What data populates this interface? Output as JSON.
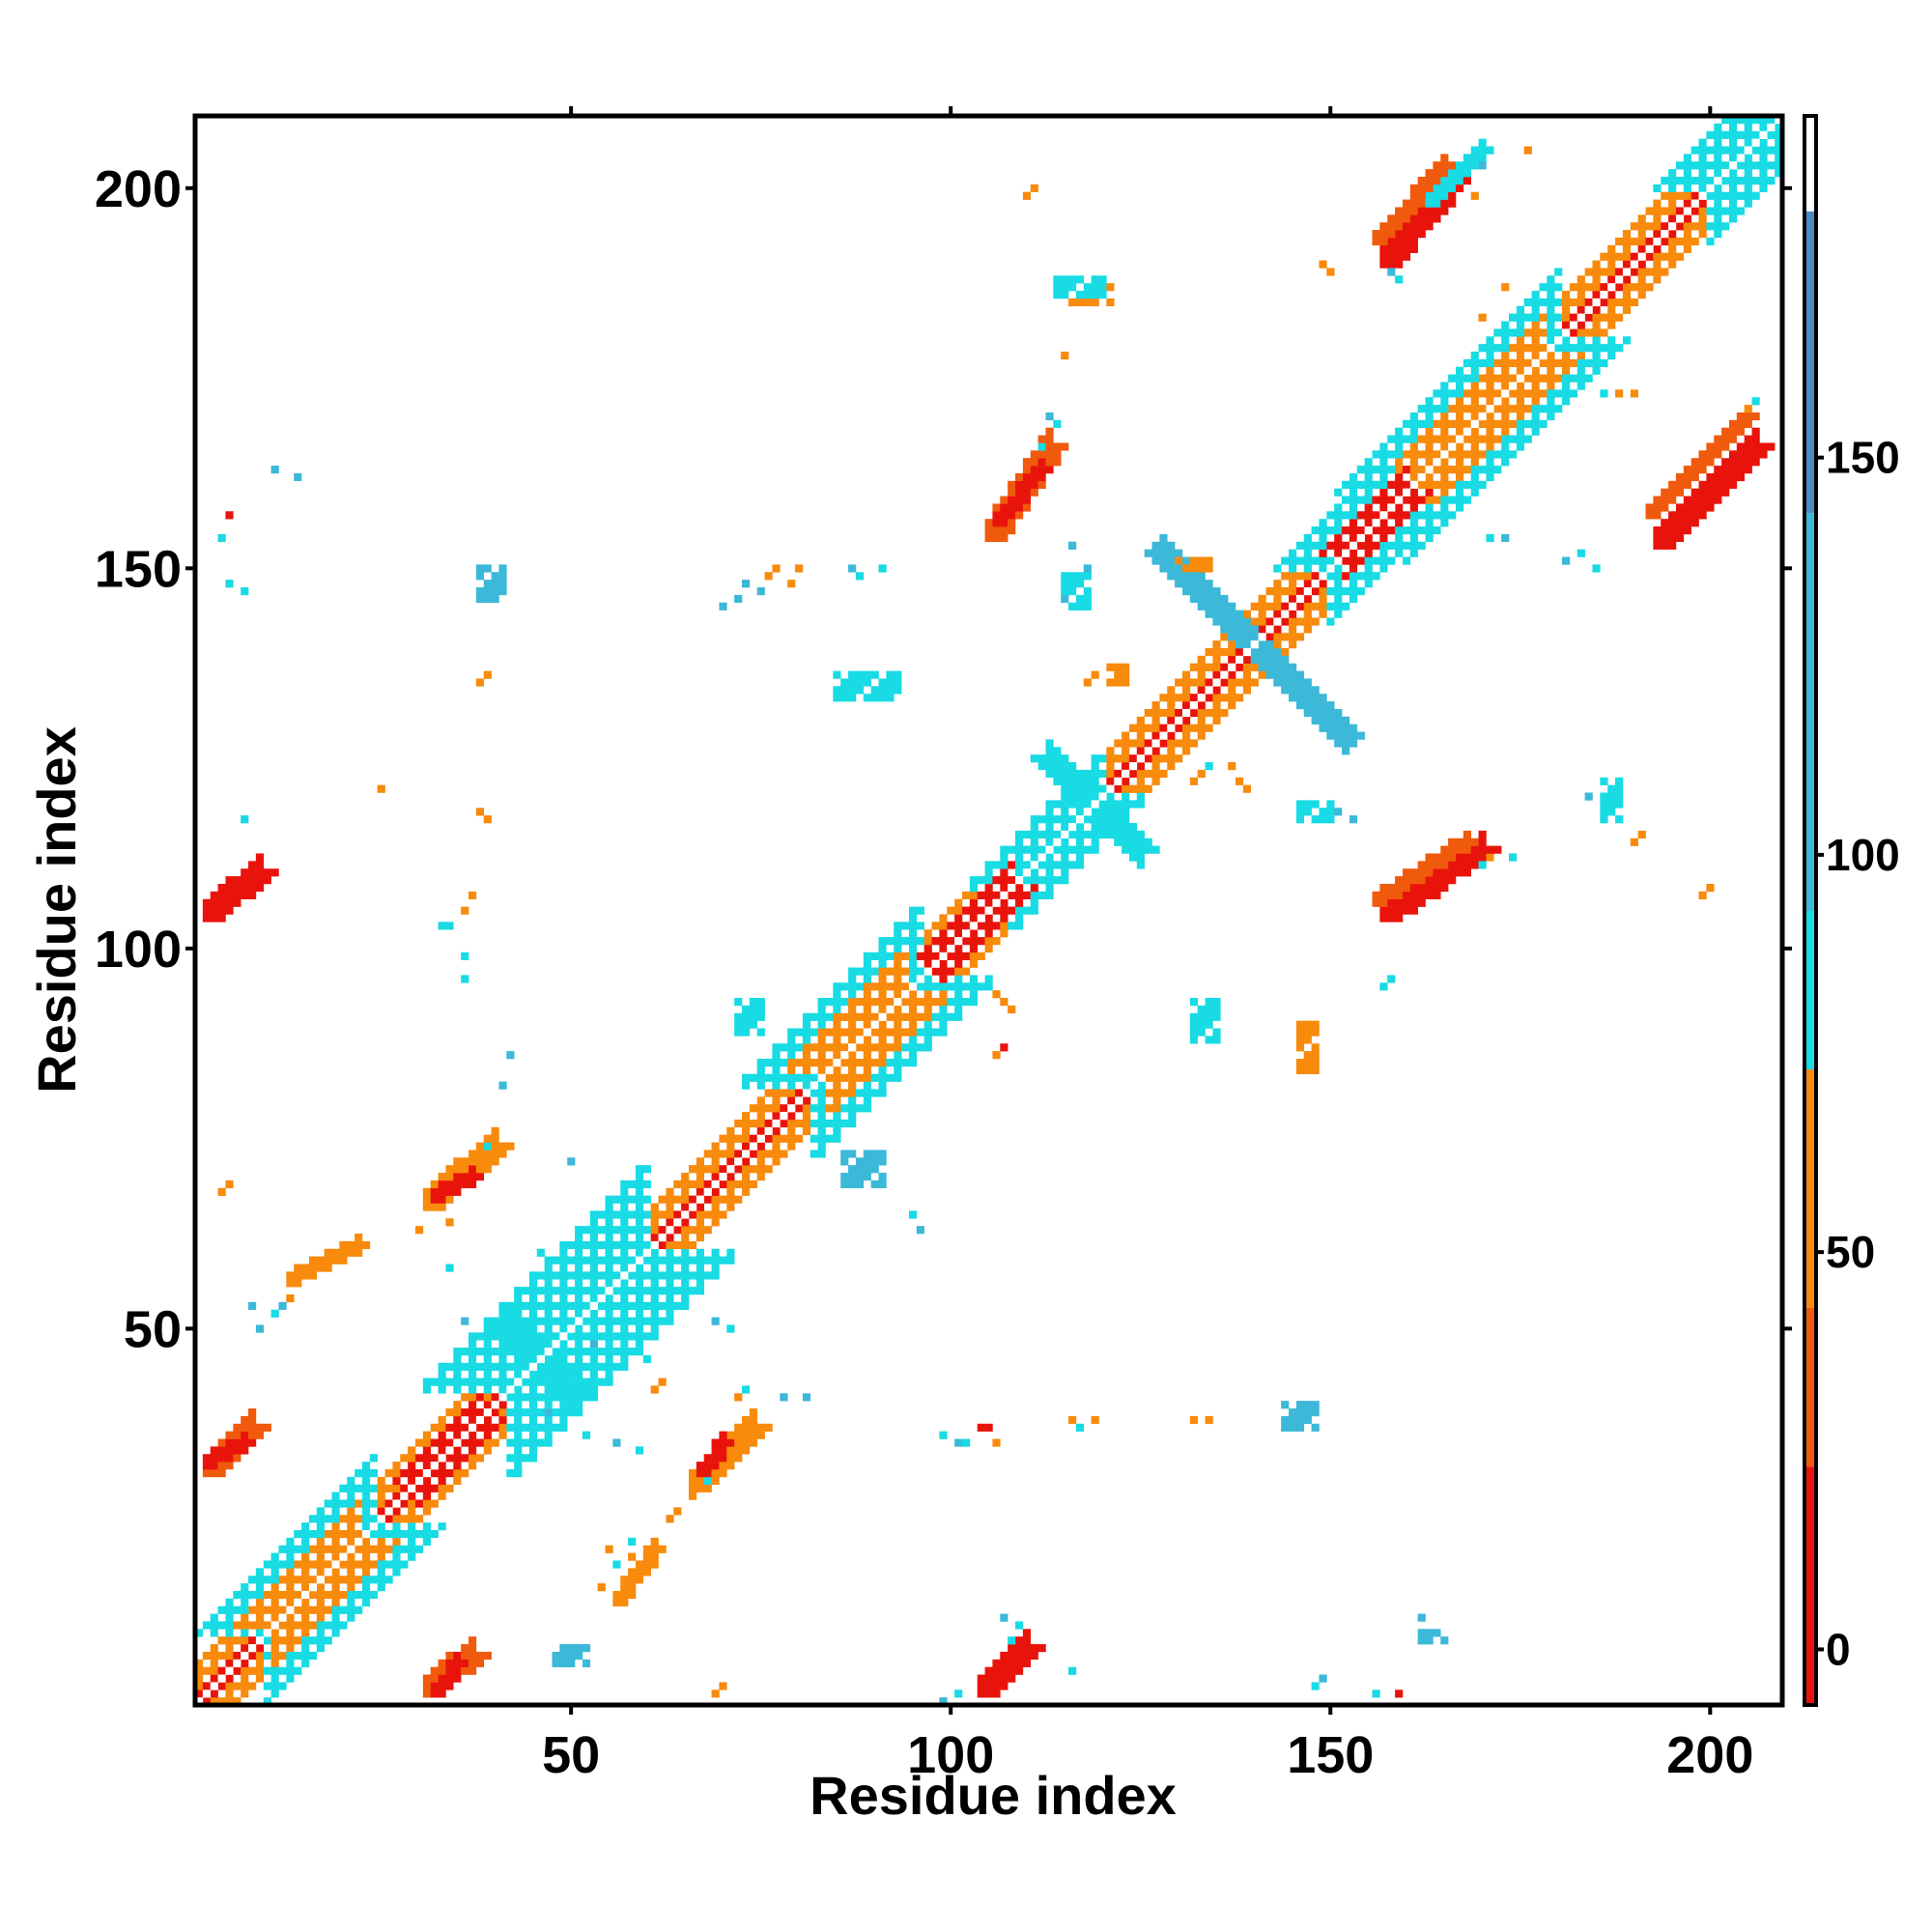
{
  "chart_data": {
    "type": "heatmap",
    "title": "",
    "xlabel": "Residue index",
    "ylabel": "Residue index",
    "xlim": [
      1,
      209
    ],
    "ylim": [
      1,
      209
    ],
    "x_ticks": [
      "50",
      "100",
      "150",
      "200"
    ],
    "y_ticks": [
      "50",
      "100",
      "150",
      "200"
    ],
    "colorbar": {
      "ticks": [
        "0",
        "50",
        "100",
        "150"
      ],
      "tick_values": [
        0,
        50,
        100,
        150
      ],
      "range": [
        -7,
        193
      ],
      "bands": [
        {
          "from": -7,
          "to": 23,
          "color": "#e8140c"
        },
        {
          "from": 23,
          "to": 43,
          "color": "#f05a0c"
        },
        {
          "from": 43,
          "to": 73,
          "color": "#f88a0c"
        },
        {
          "from": 73,
          "to": 93,
          "color": "#18dbe4"
        },
        {
          "from": 93,
          "to": 143,
          "color": "#3cb8d8"
        },
        {
          "from": 143,
          "to": 181,
          "color": "#4a8cc4"
        },
        {
          "from": 181,
          "to": 193,
          "color": "#ffffff"
        }
      ]
    },
    "palette": {
      "red": "#e8140c",
      "orange_red": "#f05a0c",
      "orange": "#f88a0c",
      "cyan": "#18dbe4",
      "light_blue": "#3cb8d8",
      "steel_blue": "#4a8cc4"
    },
    "regions": [
      {
        "kind": "diag",
        "from": 1,
        "to": 209,
        "width": 5,
        "color": "orange"
      },
      {
        "kind": "diag",
        "from": 1,
        "to": 209,
        "width": 1,
        "color": "red"
      },
      {
        "kind": "diag",
        "from": 42,
        "to": 60,
        "width": 12,
        "color": "cyan"
      },
      {
        "kind": "diag",
        "from": 82,
        "to": 96,
        "width": 10,
        "color": "cyan"
      },
      {
        "kind": "diag",
        "from": 84,
        "to": 94,
        "width": 6,
        "color": "orange"
      },
      {
        "kind": "diag",
        "from": 160,
        "to": 180,
        "width": 9,
        "color": "cyan"
      },
      {
        "kind": "diag",
        "from": 162,
        "to": 178,
        "width": 5,
        "color": "orange"
      },
      {
        "kind": "diag",
        "from": 10,
        "to": 24,
        "width": 9,
        "color": "cyan"
      },
      {
        "kind": "diag",
        "from": 11,
        "to": 22,
        "width": 5,
        "color": "orange"
      },
      {
        "kind": "diag",
        "from": 200,
        "to": 209,
        "width": 7,
        "color": "cyan"
      },
      {
        "kind": "diag",
        "from": 150,
        "to": 158,
        "width": 7,
        "color": "cyan"
      },
      {
        "kind": "diag",
        "from": 108,
        "to": 120,
        "width": 6,
        "color": "cyan"
      },
      {
        "kind": "diag",
        "from": 99,
        "to": 108,
        "width": 3,
        "color": "red"
      },
      {
        "kind": "diag",
        "from": 30,
        "to": 38,
        "width": 3,
        "color": "red"
      },
      {
        "kind": "diag",
        "from": 152,
        "to": 160,
        "width": 3,
        "color": "red"
      },
      {
        "kind": "anti",
        "c": 140,
        "r1": -13,
        "r2": 12,
        "width": 3,
        "color": "light_blue"
      },
      {
        "kind": "anti",
        "c": 119,
        "r1": -6,
        "r2": 6,
        "width": 3,
        "color": "cyan"
      },
      {
        "kind": "anti",
        "c": 46,
        "r1": -4,
        "r2": 4,
        "width": 4,
        "color": "cyan"
      },
      {
        "kind": "para",
        "x1": 157,
        "y1": 190,
        "x2": 166,
        "y2": 201,
        "width": 3,
        "color": "red"
      },
      {
        "kind": "para",
        "x1": 156,
        "y1": 193,
        "x2": 165,
        "y2": 203,
        "width": 2,
        "color": "orange_red"
      },
      {
        "kind": "para",
        "x1": 163,
        "y1": 198,
        "x2": 170,
        "y2": 205,
        "width": 2,
        "color": "cyan"
      },
      {
        "kind": "para",
        "x1": 193,
        "y1": 153,
        "x2": 206,
        "y2": 166,
        "width": 3,
        "color": "red"
      },
      {
        "kind": "para",
        "x1": 192,
        "y1": 157,
        "x2": 205,
        "y2": 170,
        "width": 2,
        "color": "orange_red"
      },
      {
        "kind": "para",
        "x1": 105,
        "y1": 154,
        "x2": 113,
        "y2": 166,
        "width": 3,
        "color": "orange_red"
      },
      {
        "kind": "para",
        "x1": 106,
        "y1": 156,
        "x2": 112,
        "y2": 163,
        "width": 2,
        "color": "red"
      },
      {
        "kind": "para",
        "x1": 157,
        "y1": 104,
        "x2": 170,
        "y2": 113,
        "width": 3,
        "color": "red"
      },
      {
        "kind": "para",
        "x1": 156,
        "y1": 106,
        "x2": 168,
        "y2": 114,
        "width": 2,
        "color": "orange_red"
      },
      {
        "kind": "para",
        "x1": 2,
        "y1": 104,
        "x2": 9,
        "y2": 110,
        "width": 3,
        "color": "red"
      },
      {
        "kind": "para",
        "x1": 2,
        "y1": 31,
        "x2": 8,
        "y2": 37,
        "width": 3,
        "color": "orange_red"
      },
      {
        "kind": "para",
        "x1": 2,
        "y1": 32,
        "x2": 7,
        "y2": 35,
        "width": 2,
        "color": "red"
      },
      {
        "kind": "para",
        "x1": 31,
        "y1": 2,
        "x2": 37,
        "y2": 7,
        "width": 3,
        "color": "orange_red"
      },
      {
        "kind": "para",
        "x1": 32,
        "y1": 2,
        "x2": 35,
        "y2": 6,
        "width": 2,
        "color": "red"
      },
      {
        "kind": "para",
        "x1": 104,
        "y1": 2,
        "x2": 110,
        "y2": 8,
        "width": 3,
        "color": "red"
      },
      {
        "kind": "para",
        "x1": 31,
        "y1": 66,
        "x2": 40,
        "y2": 74,
        "width": 3,
        "color": "orange"
      },
      {
        "kind": "para",
        "x1": 32,
        "y1": 67,
        "x2": 37,
        "y2": 70,
        "width": 2,
        "color": "red"
      },
      {
        "kind": "para",
        "x1": 66,
        "y1": 29,
        "x2": 74,
        "y2": 37,
        "width": 3,
        "color": "orange"
      },
      {
        "kind": "para",
        "x1": 67,
        "y1": 31,
        "x2": 70,
        "y2": 35,
        "width": 2,
        "color": "red"
      },
      {
        "kind": "para",
        "x1": 13,
        "y1": 56,
        "x2": 22,
        "y2": 61,
        "width": 2,
        "color": "orange"
      },
      {
        "kind": "para",
        "x1": 56,
        "y1": 14,
        "x2": 61,
        "y2": 21,
        "width": 2,
        "color": "orange"
      },
      {
        "kind": "blob",
        "x1": 38,
        "x2": 41,
        "y1": 146,
        "y2": 150,
        "color": "light_blue"
      },
      {
        "kind": "blob",
        "x1": 115,
        "x2": 118,
        "y1": 145,
        "y2": 149,
        "color": "cyan"
      },
      {
        "kind": "blob",
        "x1": 85,
        "x2": 93,
        "y1": 133,
        "y2": 136,
        "color": "cyan"
      },
      {
        "kind": "blob",
        "x1": 146,
        "x2": 150,
        "y1": 117,
        "y2": 119,
        "color": "cyan"
      },
      {
        "kind": "blob",
        "x1": 144,
        "x2": 148,
        "y1": 37,
        "y2": 40,
        "color": "light_blue"
      },
      {
        "kind": "blob",
        "x1": 132,
        "x2": 135,
        "y1": 88,
        "y2": 93,
        "color": "cyan"
      },
      {
        "kind": "blob",
        "x1": 72,
        "x2": 75,
        "y1": 89,
        "y2": 93,
        "color": "cyan"
      },
      {
        "kind": "blob",
        "x1": 186,
        "x2": 188,
        "y1": 117,
        "y2": 122,
        "color": "cyan"
      },
      {
        "kind": "blob",
        "x1": 115,
        "x2": 121,
        "y1": 185,
        "y2": 187,
        "color": "orange"
      },
      {
        "kind": "blob",
        "x1": 114,
        "x2": 120,
        "y1": 186,
        "y2": 188,
        "color": "cyan"
      },
      {
        "kind": "blob",
        "x1": 146,
        "x2": 148,
        "y1": 84,
        "y2": 90,
        "color": "orange"
      },
      {
        "kind": "blob",
        "x1": 86,
        "x2": 91,
        "y1": 69,
        "y2": 73,
        "color": "light_blue"
      },
      {
        "kind": "blob",
        "x1": 121,
        "x2": 123,
        "y1": 135,
        "y2": 137,
        "color": "orange"
      },
      {
        "kind": "blob",
        "x1": 130,
        "x2": 134,
        "y1": 150,
        "y2": 151,
        "color": "orange"
      },
      {
        "kind": "blob",
        "x1": 162,
        "x2": 165,
        "y1": 9,
        "y2": 10,
        "color": "light_blue"
      },
      {
        "kind": "blob",
        "x1": 48,
        "x2": 52,
        "y1": 6,
        "y2": 8,
        "color": "light_blue"
      }
    ],
    "speckles": [
      [
        110,
        199,
        "orange"
      ],
      [
        111,
        200,
        "orange"
      ],
      [
        112,
        166,
        "cyan"
      ],
      [
        114,
        169,
        "cyan"
      ],
      [
        113,
        170,
        "light_blue"
      ],
      [
        115,
        178,
        "orange"
      ],
      [
        5,
        157,
        "red"
      ],
      [
        4,
        154,
        "cyan"
      ],
      [
        11,
        163,
        "light_blue"
      ],
      [
        14,
        162,
        "light_blue"
      ],
      [
        5,
        148,
        "cyan"
      ],
      [
        7,
        147,
        "cyan"
      ],
      [
        39,
        136,
        "orange"
      ],
      [
        38,
        135,
        "orange"
      ],
      [
        38,
        118,
        "orange"
      ],
      [
        39,
        117,
        "orange"
      ],
      [
        7,
        117,
        "cyan"
      ],
      [
        37,
        107,
        "orange"
      ],
      [
        36,
        105,
        "orange"
      ],
      [
        33,
        103,
        "cyan"
      ],
      [
        34,
        103,
        "cyan"
      ],
      [
        36,
        99,
        "cyan"
      ],
      [
        36,
        96,
        "cyan"
      ],
      [
        42,
        86,
        "light_blue"
      ],
      [
        41,
        82,
        "light_blue"
      ],
      [
        39,
        74,
        "cyan"
      ],
      [
        50,
        72,
        "light_blue"
      ],
      [
        4,
        68,
        "orange"
      ],
      [
        5,
        69,
        "orange"
      ],
      [
        8,
        53,
        "light_blue"
      ],
      [
        9,
        50,
        "light_blue"
      ],
      [
        11,
        52,
        "cyan"
      ],
      [
        12,
        53,
        "light_blue"
      ],
      [
        13,
        54,
        "orange"
      ],
      [
        34,
        64,
        "orange"
      ],
      [
        30,
        63,
        "orange"
      ],
      [
        34,
        58,
        "cyan"
      ],
      [
        36,
        51,
        "light_blue"
      ],
      [
        47,
        39,
        "light_blue"
      ],
      [
        52,
        36,
        "cyan"
      ],
      [
        56,
        35,
        "light_blue"
      ],
      [
        59,
        34,
        "cyan"
      ],
      [
        55,
        21,
        "orange"
      ],
      [
        58,
        22,
        "cyan"
      ],
      [
        54,
        16,
        "orange"
      ],
      [
        56,
        19,
        "cyan"
      ],
      [
        69,
        51,
        "light_blue"
      ],
      [
        71,
        50,
        "cyan"
      ],
      [
        72,
        41,
        "orange"
      ],
      [
        73,
        42,
        "cyan"
      ],
      [
        78,
        41,
        "light_blue"
      ],
      [
        81,
        41,
        "light_blue"
      ],
      [
        69,
        2,
        "orange"
      ],
      [
        70,
        3,
        "orange"
      ],
      [
        99,
        36,
        "cyan"
      ],
      [
        101,
        35,
        "light_blue"
      ],
      [
        102,
        35,
        "cyan"
      ],
      [
        104,
        37,
        "red"
      ],
      [
        105,
        37,
        "red"
      ],
      [
        106,
        35,
        "orange"
      ],
      [
        116,
        38,
        "orange"
      ],
      [
        117,
        37,
        "cyan"
      ],
      [
        119,
        38,
        "orange"
      ],
      [
        132,
        38,
        "orange"
      ],
      [
        134,
        38,
        "orange"
      ],
      [
        107,
        12,
        "light_blue"
      ],
      [
        108,
        9,
        "cyan"
      ],
      [
        109,
        11,
        "cyan"
      ],
      [
        116,
        5,
        "cyan"
      ],
      [
        99,
        1,
        "light_blue"
      ],
      [
        101,
        2,
        "cyan"
      ],
      [
        149,
        4,
        "light_blue"
      ],
      [
        148,
        3,
        "cyan"
      ],
      [
        156,
        2,
        "cyan"
      ],
      [
        159,
        2,
        "red"
      ],
      [
        162,
        12,
        "light_blue"
      ],
      [
        106,
        94,
        "orange"
      ],
      [
        107,
        93,
        "orange"
      ],
      [
        108,
        92,
        "orange"
      ],
      [
        106,
        86,
        "orange"
      ],
      [
        107,
        87,
        "red"
      ],
      [
        157,
        95,
        "cyan"
      ],
      [
        158,
        96,
        "cyan"
      ],
      [
        199,
        107,
        "orange"
      ],
      [
        200,
        108,
        "orange"
      ],
      [
        171,
        112,
        "orange"
      ],
      [
        170,
        111,
        "cyan"
      ],
      [
        174,
        112,
        "cyan"
      ],
      [
        181,
        151,
        "light_blue"
      ],
      [
        183,
        152,
        "cyan"
      ],
      [
        185,
        150,
        "cyan"
      ],
      [
        188,
        173,
        "orange"
      ],
      [
        190,
        173,
        "orange"
      ],
      [
        186,
        173,
        "cyan"
      ],
      [
        205,
        171,
        "orange"
      ],
      [
        206,
        172,
        "cyan"
      ],
      [
        170,
        183,
        "orange"
      ],
      [
        173,
        187,
        "orange"
      ],
      [
        169,
        199,
        "orange"
      ],
      [
        170,
        203,
        "light_blue"
      ],
      [
        176,
        205,
        "orange"
      ],
      [
        149,
        190,
        "orange"
      ],
      [
        150,
        189,
        "orange"
      ],
      [
        158,
        189,
        "light_blue"
      ],
      [
        159,
        188,
        "cyan"
      ],
      [
        171,
        154,
        "cyan"
      ],
      [
        173,
        154,
        "light_blue"
      ],
      [
        165,
        158,
        "cyan"
      ],
      [
        96,
        63,
        "light_blue"
      ],
      [
        95,
        65,
        "cyan"
      ],
      [
        61,
        42,
        "orange"
      ],
      [
        62,
        43,
        "orange"
      ],
      [
        60,
        46,
        "cyan"
      ],
      [
        50,
        53,
        "cyan"
      ],
      [
        53,
        48,
        "light_blue"
      ],
      [
        46,
        60,
        "cyan"
      ],
      [
        58,
        20,
        "orange"
      ],
      [
        63,
        25,
        "orange"
      ],
      [
        64,
        26,
        "orange"
      ],
      [
        66,
        28,
        "orange"
      ],
      [
        68,
        30,
        "cyan"
      ],
      [
        25,
        121,
        "orange"
      ],
      [
        132,
        122,
        "orange"
      ],
      [
        133,
        123,
        "orange"
      ],
      [
        134,
        124,
        "cyan"
      ],
      [
        76,
        149,
        "orange"
      ],
      [
        77,
        150,
        "orange"
      ],
      [
        80,
        150,
        "orange"
      ],
      [
        79,
        148,
        "orange"
      ],
      [
        88,
        149,
        "cyan"
      ],
      [
        91,
        150,
        "cyan"
      ],
      [
        87,
        150,
        "light_blue"
      ],
      [
        75,
        147,
        "light_blue"
      ],
      [
        73,
        148,
        "light_blue"
      ],
      [
        115,
        146,
        "light_blue"
      ],
      [
        116,
        153,
        "light_blue"
      ],
      [
        118,
        150,
        "light_blue"
      ],
      [
        122,
        137,
        "orange"
      ],
      [
        118,
        135,
        "orange"
      ],
      [
        119,
        136,
        "orange"
      ],
      [
        70,
        145,
        "light_blue"
      ],
      [
        72,
        146,
        "light_blue"
      ],
      [
        137,
        124,
        "orange"
      ],
      [
        138,
        122,
        "orange"
      ],
      [
        139,
        121,
        "orange"
      ],
      [
        151,
        118,
        "light_blue"
      ],
      [
        153,
        117,
        "light_blue"
      ],
      [
        184,
        120,
        "light_blue"
      ],
      [
        190,
        114,
        "orange"
      ],
      [
        191,
        115,
        "orange"
      ]
    ]
  }
}
